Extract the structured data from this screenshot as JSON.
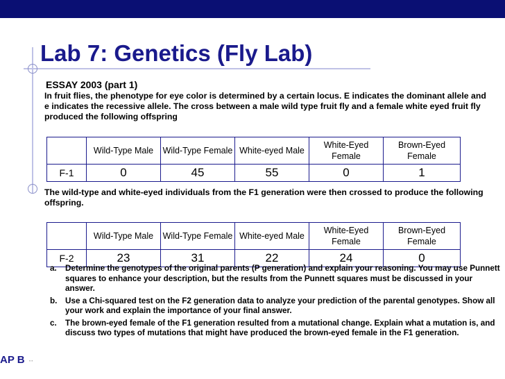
{
  "slide": {
    "title": "Lab 7: Genetics (Fly Lab)",
    "subtitle": "ESSAY 2003 (part 1)",
    "intro": "In fruit flies, the phenotype for eye color is determined by a certain locus. E indicates the dominant allele and e indicates the recessive allele. The cross between a male wild type fruit fly and a female white eyed fruit fly produced the following offspring",
    "middle": "The wild-type and white-eyed individuals from the F1 generation were then crossed to produce the following offspring.",
    "footer": "AP B",
    "footer_badge": "··"
  },
  "table_headers": [
    "Wild-Type Male",
    "Wild-Type Female",
    "White-eyed Male",
    "White-Eyed Female",
    "Brown-Eyed Female"
  ],
  "table_f1": {
    "label": "F-1",
    "values": [
      "0",
      "45",
      "55",
      "0",
      "1"
    ]
  },
  "table_f2": {
    "label": "F-2",
    "values": [
      "23",
      "31",
      "22",
      "24",
      "0"
    ]
  },
  "questions": [
    {
      "letter": "a.",
      "text": "Determine the genotypes of the original parents (P generation) and explain your reasoning. You may use Punnett squares to enhance your description, but the results from the Punnett squares must be discussed in your answer."
    },
    {
      "letter": "b.",
      "text": "Use a Chi-squared test on the F2 generation data to analyze your prediction of the parental genotypes. Show all your work and explain the importance of your final answer."
    },
    {
      "letter": "c.",
      "text": "The brown-eyed female of the F1 generation resulted from a mutational change. Explain what a mutation is, and discuss two types of mutations that might have produced the brown-eyed female in the F1 generation."
    }
  ],
  "colors": {
    "top_bar": "#0a0f73",
    "title": "#1a1a8c",
    "table_border": "#1a1a8c"
  }
}
